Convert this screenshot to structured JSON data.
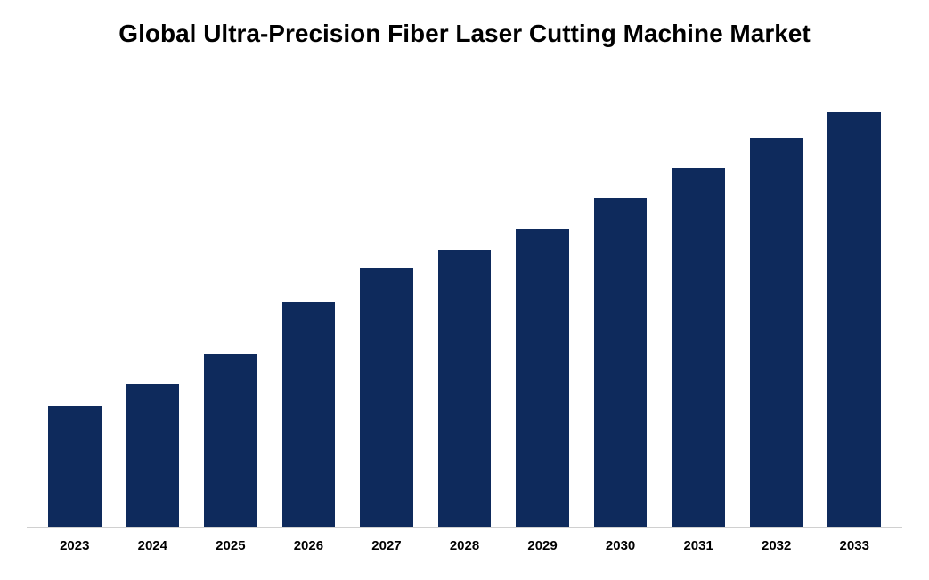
{
  "chart": {
    "type": "bar",
    "title": "Global Ultra-Precision Fiber Laser Cutting Machine Market",
    "title_fontsize": 28,
    "title_fontweight": "bold",
    "title_color": "#000000",
    "categories": [
      "2023",
      "2024",
      "2025",
      "2026",
      "2027",
      "2028",
      "2029",
      "2030",
      "2031",
      "2032",
      "2033"
    ],
    "values": [
      28,
      33,
      40,
      52,
      60,
      64,
      69,
      76,
      83,
      90,
      96
    ],
    "ylim": [
      0,
      100
    ],
    "bar_color": "#0e2a5c",
    "background_color": "#ffffff",
    "axis_line_color": "#d0d0d0",
    "label_fontsize": 15,
    "label_fontweight": "bold",
    "label_color": "#000000",
    "bar_width": 0.68,
    "grid": false
  }
}
